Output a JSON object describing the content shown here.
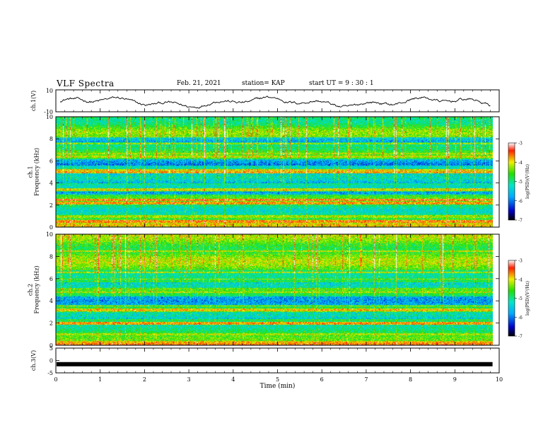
{
  "header": {
    "title": "VLF Spectra",
    "date": "Feb. 21, 2021",
    "station": "station= KAP",
    "start_ut": "start  UT =   9  : 30 : 1"
  },
  "chart_data": [
    {
      "type": "line",
      "name": "ch1-waveform",
      "ylabel": "ch.1(V)",
      "ylim": [
        -10,
        10
      ],
      "yticks": [
        "10",
        "-10"
      ],
      "xlim": [
        0,
        10
      ],
      "series_style": {
        "color": "#000000"
      }
    },
    {
      "type": "heatmap",
      "name": "ch1-spectrogram",
      "ylabel": "ch.1\nFrequency (kHz)",
      "ylim": [
        0,
        10
      ],
      "yticks": [
        "0",
        "2",
        "4",
        "6",
        "8",
        "10"
      ],
      "xlim": [
        0,
        9.85
      ],
      "colorbar": {
        "label": "log(PSD)(V²/Hz)",
        "ticks": [
          "-3",
          "-4",
          "-5",
          "-6",
          "-7"
        ],
        "range": [
          -7,
          -3
        ]
      }
    },
    {
      "type": "heatmap",
      "name": "ch2-spectrogram",
      "ylabel": "ch.2\nFrequency (kHz)",
      "ylim": [
        0,
        10
      ],
      "yticks": [
        "0",
        "2",
        "4",
        "6",
        "8",
        "10"
      ],
      "xlim": [
        0,
        9.85
      ],
      "colorbar": {
        "label": "log(PSD)(V²/Hz)",
        "ticks": [
          "-3",
          "-4",
          "-5",
          "-6",
          "-7"
        ],
        "range": [
          -7,
          -3
        ]
      }
    },
    {
      "type": "line",
      "name": "ch3-signal",
      "ylabel": "ch.3(V)",
      "ylim": [
        -5,
        5
      ],
      "yticks": [
        "5",
        "0",
        "-5"
      ],
      "xlim": [
        0,
        10
      ],
      "xlabel": "Time  (min)",
      "xticks": [
        "0",
        "1",
        "2",
        "3",
        "4",
        "5",
        "6",
        "7",
        "8",
        "9",
        "10"
      ],
      "level_value": -1.5
    }
  ]
}
